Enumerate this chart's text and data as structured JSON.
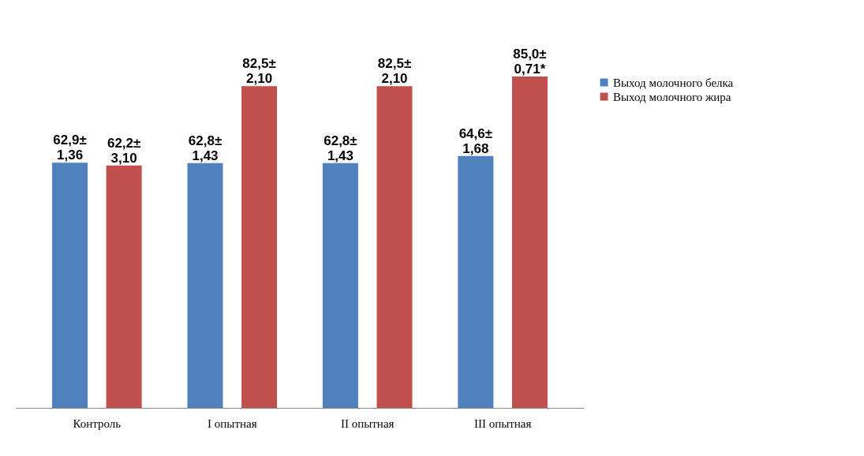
{
  "chart_data": {
    "type": "bar",
    "categories": [
      "Контроль",
      "I опытная",
      "II опытная",
      "III опытная"
    ],
    "series": [
      {
        "name": "Выход молочного белка",
        "color": "#4f81bd",
        "values": [
          62.9,
          62.8,
          62.8,
          64.6
        ],
        "value_labels": [
          "62,9±1,36",
          "62,8±1,43",
          "62,8±1,43",
          "64,6±1,68"
        ]
      },
      {
        "name": "Выход молочного жира",
        "color": "#c0504d",
        "values": [
          62.2,
          82.5,
          82.5,
          85.0
        ],
        "value_labels": [
          "62,2±3,10",
          "82,5±2,10",
          "82,5±2,10",
          "85,0±0,71*"
        ]
      }
    ],
    "legend": "right",
    "grid": false
  }
}
